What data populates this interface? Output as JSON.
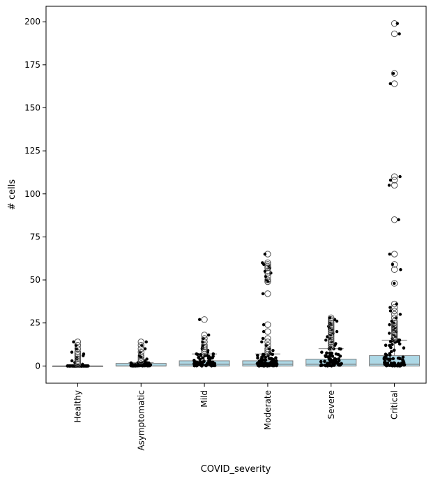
{
  "chart_data": {
    "type": "box",
    "title": "",
    "xlabel": "COVID_severity",
    "ylabel": "# cells",
    "ylim": [
      -10,
      209
    ],
    "yticks": [
      0,
      25,
      50,
      75,
      100,
      125,
      150,
      175,
      200
    ],
    "categories": [
      "Healthy",
      "Asymptomatic",
      "Mild",
      "Moderate",
      "Severe",
      "Critical"
    ],
    "box_color": "#add8e6",
    "box_edge_color": "#808080",
    "point_color": "#000000",
    "grid": false,
    "legend": "none",
    "boxes": [
      {
        "category": "Healthy",
        "q1": 0,
        "median": 0,
        "q3": 0,
        "whisker_low": 0,
        "whisker_high": 0,
        "outliers": [
          1,
          2,
          3,
          4,
          5,
          6,
          7,
          8,
          10,
          12,
          14
        ]
      },
      {
        "category": "Asymptomatic",
        "q1": 0,
        "median": 0,
        "q3": 1.5,
        "whisker_low": 0,
        "whisker_high": 2,
        "outliers": [
          3,
          4,
          5,
          6,
          8,
          10,
          12,
          14
        ]
      },
      {
        "category": "Mild",
        "q1": 0,
        "median": 1,
        "q3": 3,
        "whisker_low": 0,
        "whisker_high": 7,
        "outliers": [
          8,
          9,
          10,
          11,
          12,
          14,
          16,
          18,
          27
        ]
      },
      {
        "category": "Moderate",
        "q1": 0,
        "median": 1,
        "q3": 3,
        "whisker_low": 0,
        "whisker_high": 7,
        "outliers": [
          8,
          9,
          10,
          12,
          14,
          16,
          20,
          24,
          42,
          49,
          50,
          52,
          54,
          55,
          57,
          58,
          59,
          60,
          65
        ]
      },
      {
        "category": "Severe",
        "q1": 0,
        "median": 1,
        "q3": 4,
        "whisker_low": 0,
        "whisker_high": 10,
        "outliers": [
          11,
          12,
          13,
          14,
          15,
          16,
          17,
          18,
          19,
          20,
          21,
          22,
          23,
          24,
          25,
          26,
          27,
          28
        ]
      },
      {
        "category": "Critical",
        "q1": 0,
        "median": 1,
        "q3": 6,
        "whisker_low": 0,
        "whisker_high": 15,
        "outliers": [
          16,
          17,
          18,
          19,
          20,
          21,
          22,
          23,
          24,
          25,
          26,
          28,
          30,
          32,
          34,
          36,
          48,
          56,
          59,
          65,
          85,
          105,
          108,
          110,
          164,
          170,
          193,
          199
        ]
      }
    ]
  }
}
